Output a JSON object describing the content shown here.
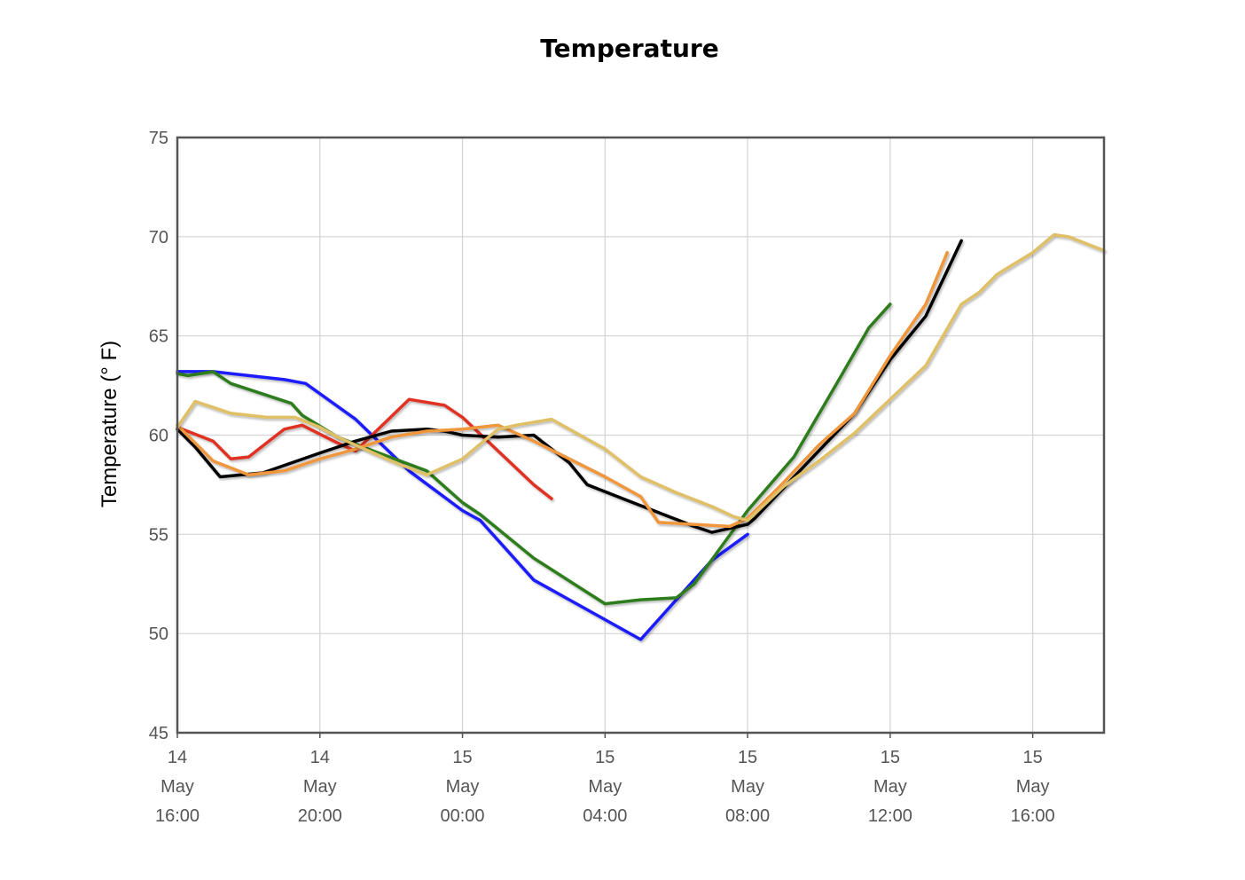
{
  "chart_data": {
    "type": "line",
    "title": "Temperature",
    "xlabel": "",
    "ylabel": "Temperature (° F)",
    "ylim": [
      45,
      75
    ],
    "yticks": [
      45,
      50,
      55,
      60,
      65,
      70,
      75
    ],
    "xlim": [
      0,
      26
    ],
    "xticks": [
      {
        "x": 0,
        "lines": [
          "14",
          "May",
          "16:00"
        ]
      },
      {
        "x": 4,
        "lines": [
          "14",
          "May",
          "20:00"
        ]
      },
      {
        "x": 8,
        "lines": [
          "15",
          "May",
          "00:00"
        ]
      },
      {
        "x": 12,
        "lines": [
          "15",
          "May",
          "04:00"
        ]
      },
      {
        "x": 16,
        "lines": [
          "15",
          "May",
          "08:00"
        ]
      },
      {
        "x": 20,
        "lines": [
          "15",
          "May",
          "12:00"
        ]
      },
      {
        "x": 24,
        "lines": [
          "15",
          "May",
          "16:00"
        ]
      }
    ],
    "grid": true,
    "legend": "none",
    "series": [
      {
        "color": "#1a1aff",
        "points": [
          [
            0,
            63.2
          ],
          [
            0.5,
            63.2
          ],
          [
            1,
            63.2
          ],
          [
            2,
            63.0
          ],
          [
            3,
            62.8
          ],
          [
            3.6,
            62.6
          ],
          [
            5,
            60.8
          ],
          [
            6.5,
            58.2
          ],
          [
            8,
            56.2
          ],
          [
            8.5,
            55.7
          ],
          [
            10,
            52.7
          ],
          [
            11,
            51.7
          ],
          [
            12,
            50.7
          ],
          [
            13,
            49.7
          ],
          [
            14,
            51.7
          ],
          [
            15,
            53.7
          ],
          [
            16,
            55.0
          ]
        ]
      },
      {
        "color": "#2e7d1e",
        "points": [
          [
            0,
            63.1
          ],
          [
            0.3,
            63.0
          ],
          [
            1,
            63.2
          ],
          [
            1.5,
            62.6
          ],
          [
            3.2,
            61.6
          ],
          [
            3.5,
            61.0
          ],
          [
            4.5,
            59.9
          ],
          [
            5.5,
            59.2
          ],
          [
            7,
            58.2
          ],
          [
            8,
            56.6
          ],
          [
            8.5,
            56.0
          ],
          [
            10,
            53.8
          ],
          [
            12,
            51.5
          ],
          [
            13,
            51.7
          ],
          [
            14,
            51.8
          ],
          [
            14.5,
            52.5
          ],
          [
            16,
            56.2
          ],
          [
            17.3,
            58.9
          ],
          [
            18.5,
            62.6
          ],
          [
            19.4,
            65.4
          ],
          [
            20,
            66.6
          ]
        ]
      },
      {
        "color": "#e03020",
        "points": [
          [
            0,
            60.4
          ],
          [
            1,
            59.7
          ],
          [
            1.5,
            58.8
          ],
          [
            2,
            58.9
          ],
          [
            3,
            60.3
          ],
          [
            3.5,
            60.5
          ],
          [
            4.5,
            59.6
          ],
          [
            5,
            59.2
          ],
          [
            6.5,
            61.8
          ],
          [
            7.5,
            61.5
          ],
          [
            8,
            60.9
          ],
          [
            9,
            59.2
          ],
          [
            10,
            57.5
          ],
          [
            10.5,
            56.8
          ]
        ]
      },
      {
        "color": "#000000",
        "points": [
          [
            0,
            60.3
          ],
          [
            0.5,
            59.4
          ],
          [
            1.2,
            57.9
          ],
          [
            2.4,
            58.1
          ],
          [
            4,
            59.1
          ],
          [
            5,
            59.7
          ],
          [
            6,
            60.2
          ],
          [
            7,
            60.3
          ],
          [
            7.5,
            60.2
          ],
          [
            8,
            60.0
          ],
          [
            9,
            59.9
          ],
          [
            10,
            60.0
          ],
          [
            11,
            58.6
          ],
          [
            11.5,
            57.5
          ],
          [
            12.5,
            56.8
          ],
          [
            13.5,
            56.1
          ],
          [
            14.5,
            55.4
          ],
          [
            15,
            55.1
          ],
          [
            16,
            55.5
          ],
          [
            16.2,
            55.8
          ],
          [
            17.2,
            57.7
          ],
          [
            19,
            61.1
          ],
          [
            20,
            63.8
          ],
          [
            21,
            66.0
          ],
          [
            22,
            69.8
          ]
        ]
      },
      {
        "color": "#f0963c",
        "points": [
          [
            0,
            60.5
          ],
          [
            1,
            58.7
          ],
          [
            2,
            58.0
          ],
          [
            3,
            58.2
          ],
          [
            4,
            58.8
          ],
          [
            5,
            59.3
          ],
          [
            6,
            59.9
          ],
          [
            7,
            60.2
          ],
          [
            8,
            60.3
          ],
          [
            9,
            60.5
          ],
          [
            10,
            59.7
          ],
          [
            11,
            58.8
          ],
          [
            12,
            57.9
          ],
          [
            13,
            56.9
          ],
          [
            13.5,
            55.6
          ],
          [
            14.5,
            55.5
          ],
          [
            15.5,
            55.4
          ],
          [
            16,
            55.8
          ],
          [
            17,
            57.6
          ],
          [
            18,
            59.5
          ],
          [
            19,
            61.1
          ],
          [
            20,
            64.0
          ],
          [
            21,
            66.6
          ],
          [
            21.6,
            69.2
          ]
        ]
      },
      {
        "color": "#e0c066",
        "points": [
          [
            0,
            60.4
          ],
          [
            0.5,
            61.7
          ],
          [
            1.5,
            61.1
          ],
          [
            2.5,
            60.9
          ],
          [
            3.3,
            60.9
          ],
          [
            4,
            60.4
          ],
          [
            4.5,
            59.9
          ],
          [
            5,
            59.5
          ],
          [
            6,
            58.7
          ],
          [
            7,
            58.0
          ],
          [
            8,
            58.8
          ],
          [
            9,
            60.3
          ],
          [
            9.5,
            60.5
          ],
          [
            10.5,
            60.8
          ],
          [
            11.5,
            59.8
          ],
          [
            12,
            59.3
          ],
          [
            13,
            57.9
          ],
          [
            14,
            57.1
          ],
          [
            15,
            56.4
          ],
          [
            15.6,
            55.9
          ],
          [
            16,
            55.7
          ],
          [
            17,
            57.4
          ],
          [
            18,
            58.7
          ],
          [
            19,
            60.1
          ],
          [
            20,
            61.8
          ],
          [
            21,
            63.5
          ],
          [
            22,
            66.6
          ],
          [
            22.5,
            67.2
          ],
          [
            23,
            68.1
          ],
          [
            24,
            69.2
          ],
          [
            24.6,
            70.1
          ],
          [
            25,
            70.0
          ],
          [
            26,
            69.3
          ]
        ]
      }
    ]
  }
}
